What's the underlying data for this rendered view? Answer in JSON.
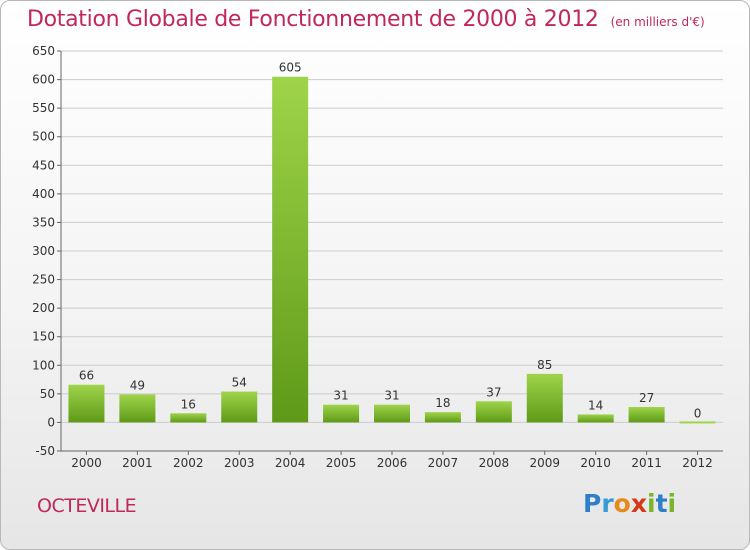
{
  "title": "Dotation Globale de Fonctionnement de 2000 à 2012",
  "subtitle": "(en milliers d'€)",
  "commune": "OCTEVILLE",
  "logo": {
    "letters": [
      "P",
      "r",
      "o",
      "x",
      "i",
      "t",
      "i"
    ],
    "colors": [
      "#2f7fc8",
      "#3a9ad6",
      "#e88a1a",
      "#d43a1a",
      "#7ab52a",
      "#2f7fc8",
      "#7ab52a"
    ]
  },
  "colors": {
    "title": "#c0285a",
    "bar_top": "#9fd44a",
    "bar_bottom": "#5e9a18",
    "grid": "#cccccc"
  },
  "chart_data": {
    "type": "bar",
    "title": "Dotation Globale de Fonctionnement de 2000 à 2012",
    "subtitle": "(en milliers d'€)",
    "categories": [
      "2000",
      "2001",
      "2002",
      "2003",
      "2004",
      "2005",
      "2006",
      "2007",
      "2008",
      "2009",
      "2010",
      "2011",
      "2012"
    ],
    "values": [
      66,
      49,
      16,
      54,
      605,
      31,
      31,
      18,
      37,
      85,
      14,
      27,
      0
    ],
    "value_labels": [
      "66",
      "49",
      "16",
      "54",
      "605",
      "31",
      "31",
      "18",
      "37",
      "85",
      "14",
      "27",
      "0"
    ],
    "ylim": [
      -50,
      650
    ],
    "yticks": [
      -50,
      0,
      50,
      100,
      150,
      200,
      250,
      300,
      350,
      400,
      450,
      500,
      550,
      600,
      650
    ],
    "grid": true,
    "xlabel": "",
    "ylabel": ""
  }
}
